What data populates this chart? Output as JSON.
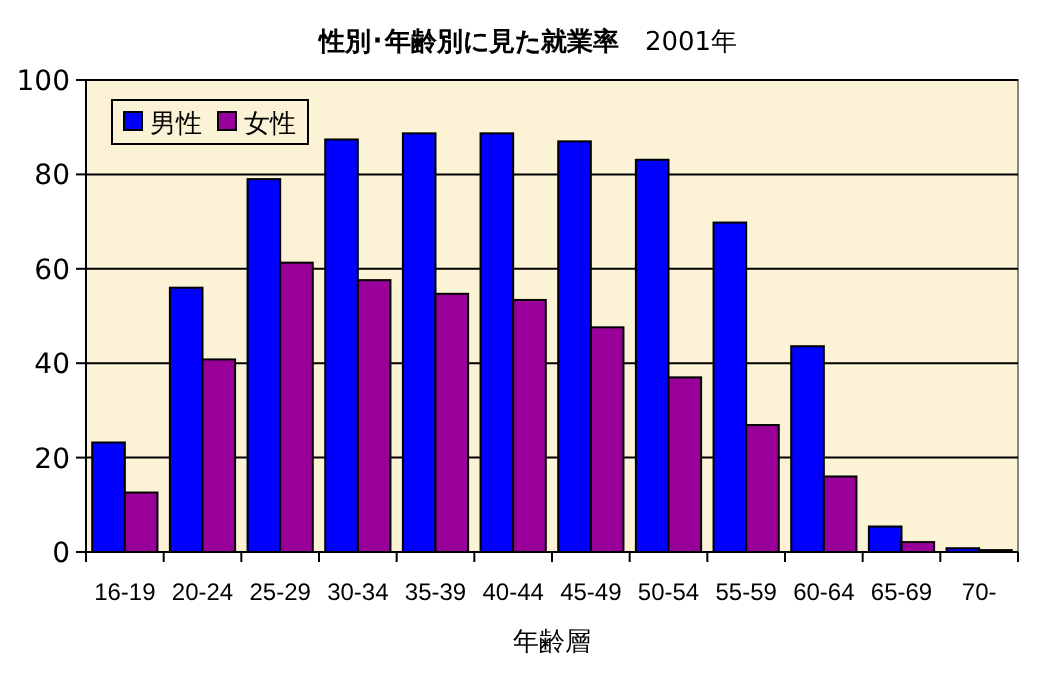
{
  "chart_data": {
    "type": "bar",
    "title": "**性別･年齢別に見た就業率**　2001年",
    "xlabel": "年齢層",
    "categories": [
      "16-19",
      "20-24",
      "25-29",
      "30-34",
      "35-39",
      "40-44",
      "45-49",
      "50-54",
      "55-59",
      "60-64",
      "65-69",
      "70-"
    ],
    "series": [
      {
        "name": "男性",
        "color": "#0000ff",
        "values": [
          23.2,
          56,
          79,
          87.4,
          88.7,
          88.7,
          87,
          83.1,
          69.8,
          43.6,
          5.4,
          0.8
        ]
      },
      {
        "name": "女性",
        "color": "#990099",
        "values": [
          12.6,
          40.8,
          61.3,
          57.6,
          54.7,
          53.4,
          47.6,
          37,
          26.9,
          16,
          2.1,
          0.4
        ]
      }
    ],
    "ylim": [
      0,
      100
    ],
    "yticks": [
      0,
      20,
      40,
      60,
      80,
      100
    ],
    "grid": "y",
    "legend": "top left"
  }
}
